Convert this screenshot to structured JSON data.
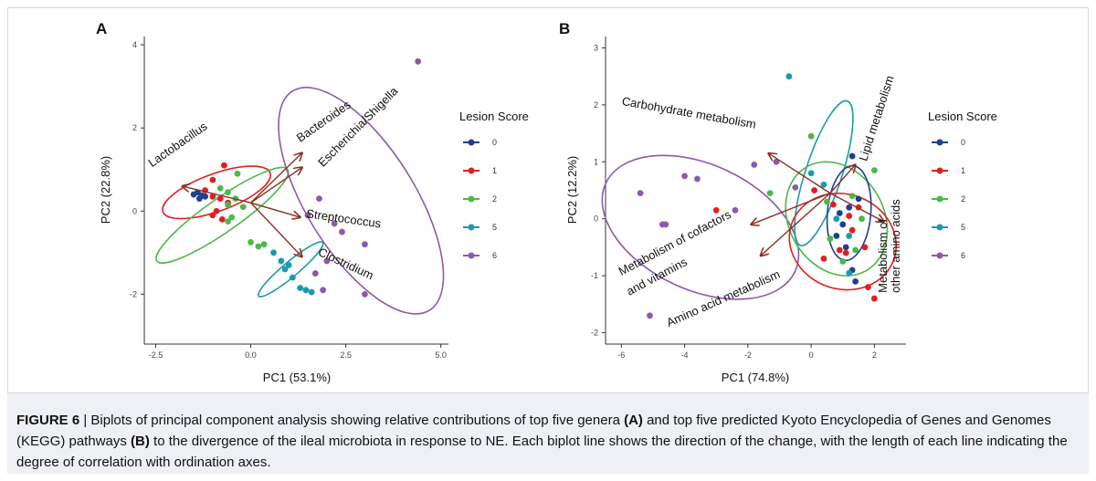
{
  "caption": {
    "label": "FIGURE 6",
    "separator": " | ",
    "part1": "Biplots of principal component analysis showing relative contributions of top five genera ",
    "bold_a": "(A)",
    "part2": " and top five predicted Kyoto Encyclopedia of Genes and Genomes (KEGG) pathways ",
    "bold_b": "(B)",
    "part3": " to the divergence of the ileal microbiota in response to NE. Each biplot line shows the direction of the change, with the length of each line indicating the degree of correlation with ordination axes."
  },
  "colors": {
    "0": "#1f3f8f",
    "1": "#e02020",
    "2": "#4cb848",
    "5": "#1a9ab0",
    "6": "#8c5aa8",
    "arrow": "#8b2e22"
  },
  "chart_data": [
    {
      "type": "scatter",
      "panel_label": "A",
      "xlabel": "PC1 (53.1%)",
      "ylabel": "PC2 (22.8%)",
      "xlim": [
        -2.8,
        5.2
      ],
      "ylim": [
        -3.2,
        4.2
      ],
      "xticks": [
        -2.5,
        0.0,
        2.5,
        5.0
      ],
      "xtick_labels": [
        "-2.5",
        "0.0",
        "2.5",
        "5.0"
      ],
      "yticks": [
        -2,
        0,
        2,
        4
      ],
      "ytick_labels": [
        "-2",
        "0",
        "2",
        "4"
      ],
      "grid": false,
      "legend": {
        "title": "Lesion Score",
        "placement": "right",
        "entries": [
          "0",
          "1",
          "2",
          "5",
          "6"
        ]
      },
      "series": [
        {
          "name": "0",
          "points": [
            [
              -1.4,
              0.45
            ],
            [
              -1.5,
              0.4
            ],
            [
              -1.3,
              0.38
            ],
            [
              -1.2,
              0.35
            ],
            [
              -1.35,
              0.3
            ]
          ]
        },
        {
          "name": "1",
          "points": [
            [
              -1.0,
              0.75
            ],
            [
              -0.7,
              1.1
            ],
            [
              -1.2,
              0.5
            ],
            [
              -1.0,
              0.35
            ],
            [
              -0.8,
              0.3
            ],
            [
              -0.6,
              0.2
            ],
            [
              -1.0,
              -0.1
            ],
            [
              -0.9,
              0.0
            ],
            [
              -0.75,
              -0.2
            ]
          ]
        },
        {
          "name": "2",
          "points": [
            [
              -0.35,
              0.9
            ],
            [
              -0.8,
              0.55
            ],
            [
              -0.6,
              0.45
            ],
            [
              -0.4,
              0.3
            ],
            [
              -0.6,
              0.15
            ],
            [
              -0.2,
              0.1
            ],
            [
              -0.5,
              -0.15
            ],
            [
              -0.6,
              -0.25
            ],
            [
              0.0,
              -0.75
            ],
            [
              0.2,
              -0.85
            ],
            [
              0.35,
              -0.8
            ]
          ]
        },
        {
          "name": "5",
          "points": [
            [
              0.6,
              -1.0
            ],
            [
              0.8,
              -1.2
            ],
            [
              0.9,
              -1.4
            ],
            [
              1.1,
              -1.6
            ],
            [
              1.3,
              -1.85
            ],
            [
              1.45,
              -1.9
            ],
            [
              1.6,
              -1.95
            ],
            [
              1.0,
              -1.3
            ]
          ]
        },
        {
          "name": "6",
          "points": [
            [
              4.4,
              3.6
            ],
            [
              1.8,
              0.3
            ],
            [
              2.2,
              -0.3
            ],
            [
              1.5,
              -0.1
            ],
            [
              2.4,
              -0.5
            ],
            [
              3.0,
              -0.8
            ],
            [
              2.0,
              -1.2
            ],
            [
              1.7,
              -1.5
            ],
            [
              1.9,
              -1.9
            ],
            [
              3.0,
              -2.0
            ]
          ]
        }
      ],
      "ellipses": [
        {
          "group": "1",
          "cx": -0.9,
          "cy": 0.45,
          "rx": 1.5,
          "ry": 0.45,
          "angle": -20
        },
        {
          "group": "2",
          "cx": -0.75,
          "cy": -0.1,
          "rx": 2.1,
          "ry": 0.4,
          "angle": -35
        },
        {
          "group": "5",
          "cx": 1.05,
          "cy": -1.4,
          "rx": 1.1,
          "ry": 0.18,
          "angle": -40
        },
        {
          "group": "6",
          "cx": 2.9,
          "cy": 0.25,
          "rx": 3.4,
          "ry": 1.3,
          "angle": 58
        }
      ],
      "arrows": [
        {
          "label": "Lactobacillus",
          "x": -1.8,
          "y": 0.6,
          "tx": -2.6,
          "ty": 1.05,
          "rot": -35
        },
        {
          "label": "Bacteroides",
          "x": 1.35,
          "y": 1.4,
          "tx": 1.3,
          "ty": 1.65,
          "rot": -35
        },
        {
          "label": "Escherichia/Shigella",
          "x": 1.35,
          "y": 1.05,
          "tx": 1.9,
          "ty": 1.05,
          "rot": -45
        },
        {
          "label": "Streptococcus",
          "x": 1.3,
          "y": -0.15,
          "tx": 1.45,
          "ty": -0.15,
          "rot": 8
        },
        {
          "label": "Clostridium",
          "x": 1.35,
          "y": -1.1,
          "tx": 1.75,
          "ty": -1.05,
          "rot": 25
        }
      ],
      "arrow_origin": [
        0.0,
        0.2
      ]
    },
    {
      "type": "scatter",
      "panel_label": "B",
      "xlabel": "PC1 (74.8%)",
      "ylabel": "PC2 (12.2%)",
      "xlim": [
        -6.5,
        3.0
      ],
      "ylim": [
        -2.2,
        3.2
      ],
      "xticks": [
        -6,
        -4,
        -2,
        0,
        2
      ],
      "xtick_labels": [
        "-6",
        "-4",
        "-2",
        "0",
        "2"
      ],
      "yticks": [
        -2,
        -1,
        0,
        1,
        2,
        3
      ],
      "ytick_labels": [
        "-2",
        "-1",
        "0",
        "1",
        "2",
        "3"
      ],
      "grid": false,
      "legend": {
        "title": "Lesion Score",
        "placement": "right",
        "entries": [
          "0",
          "1",
          "2",
          "5",
          "6"
        ]
      },
      "series": [
        {
          "name": "0",
          "points": [
            [
              1.3,
              1.1
            ],
            [
              1.5,
              0.35
            ],
            [
              1.2,
              0.2
            ],
            [
              1.0,
              -0.1
            ],
            [
              0.8,
              -0.3
            ],
            [
              1.1,
              -0.5
            ],
            [
              1.3,
              -0.9
            ],
            [
              1.4,
              -1.1
            ],
            [
              0.9,
              0.1
            ]
          ]
        },
        {
          "name": "1",
          "points": [
            [
              0.1,
              0.5
            ],
            [
              0.7,
              0.25
            ],
            [
              1.2,
              0.05
            ],
            [
              1.3,
              -0.2
            ],
            [
              0.9,
              -0.55
            ],
            [
              1.1,
              -0.6
            ],
            [
              1.7,
              -0.5
            ],
            [
              1.8,
              -1.2
            ],
            [
              2.0,
              -1.4
            ],
            [
              -3.0,
              0.15
            ],
            [
              0.4,
              -0.7
            ],
            [
              1.5,
              0.2
            ]
          ]
        },
        {
          "name": "2",
          "points": [
            [
              0.0,
              1.45
            ],
            [
              2.0,
              0.85
            ],
            [
              -1.3,
              0.45
            ],
            [
              1.3,
              0.4
            ],
            [
              0.5,
              0.3
            ],
            [
              1.6,
              0.0
            ],
            [
              0.6,
              -0.35
            ],
            [
              1.4,
              -0.55
            ],
            [
              1.0,
              -0.75
            ]
          ]
        },
        {
          "name": "5",
          "points": [
            [
              -0.7,
              2.5
            ],
            [
              0.0,
              0.8
            ],
            [
              0.4,
              0.6
            ],
            [
              0.8,
              0.0
            ],
            [
              1.2,
              -0.3
            ],
            [
              1.2,
              -0.95
            ]
          ]
        },
        {
          "name": "6",
          "points": [
            [
              -5.4,
              0.45
            ],
            [
              -4.0,
              0.75
            ],
            [
              -3.6,
              0.7
            ],
            [
              -4.7,
              -0.1
            ],
            [
              -4.6,
              -0.1
            ],
            [
              -1.8,
              0.95
            ],
            [
              -1.1,
              1.0
            ],
            [
              -0.5,
              0.55
            ],
            [
              -5.1,
              -1.7
            ],
            [
              -2.4,
              0.15
            ]
          ]
        }
      ],
      "ellipses": [
        {
          "group": "6",
          "cx": -3.5,
          "cy": -0.15,
          "rx": 3.3,
          "ry": 1.1,
          "angle": 25
        },
        {
          "group": "5",
          "cx": 0.4,
          "cy": 0.8,
          "rx": 2.4,
          "ry": 0.32,
          "angle": -72
        },
        {
          "group": "2",
          "cx": 0.8,
          "cy": 0.0,
          "rx": 1.5,
          "ry": 1.05,
          "angle": -30
        },
        {
          "group": "1",
          "cx": 1.0,
          "cy": -0.4,
          "rx": 1.5,
          "ry": 0.95,
          "angle": -70
        },
        {
          "group": "0",
          "cx": 1.2,
          "cy": 0.1,
          "rx": 1.5,
          "ry": 0.38,
          "angle": -85
        }
      ],
      "arrows": [
        {
          "label": "Carbohydrate metabolism",
          "x": -1.35,
          "y": 1.15,
          "tx": -6.0,
          "ty": 2.0,
          "rot": 10
        },
        {
          "label": "Lipid metabolism",
          "x": 1.4,
          "y": 0.95,
          "tx": 1.75,
          "ty": 1.0,
          "rot": -72
        },
        {
          "label": "Metabolism of cofactors",
          "x": -1.9,
          "y": -0.1,
          "tx": -6.0,
          "ty": -1.0,
          "rot": -28
        },
        {
          "label": "and vitamins",
          "x": null,
          "y": null,
          "tx": -5.75,
          "ty": -1.35,
          "rot": -28
        },
        {
          "label": "Amino acid metabolism",
          "x": -1.6,
          "y": -0.65,
          "tx": -4.5,
          "ty": -1.9,
          "rot": -24
        },
        {
          "label": "Metabolism of",
          "x": 2.3,
          "y": -0.05,
          "tx": 2.4,
          "ty": -1.3,
          "rot": -90
        },
        {
          "label": "other amino acids",
          "x": null,
          "y": null,
          "tx": 2.8,
          "ty": -1.3,
          "rot": -90
        }
      ],
      "arrow_origin": [
        0.6,
        0.45
      ]
    }
  ]
}
